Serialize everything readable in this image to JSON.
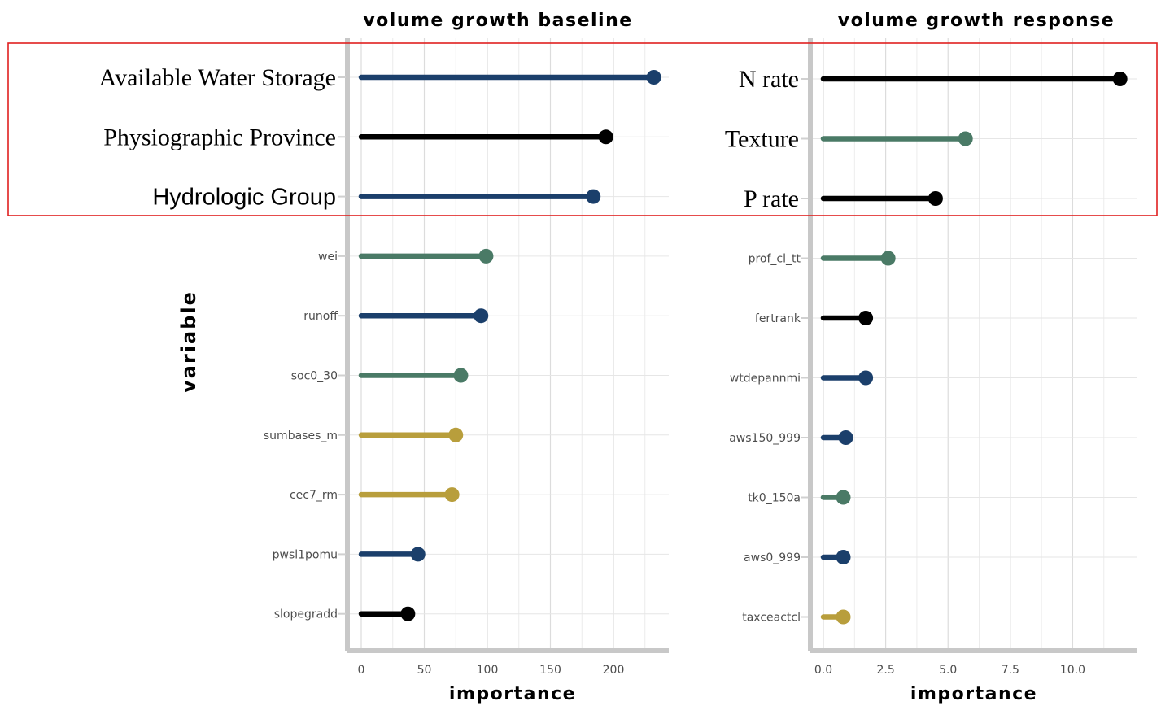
{
  "chart_data": [
    {
      "type": "lollipop",
      "title": "volume growth baseline",
      "xlabel": "importance",
      "ylabel": "variable",
      "xlim": [
        0,
        240
      ],
      "xticks": [
        0,
        50,
        100,
        150,
        200
      ],
      "grid": true,
      "highlight_box": "top 3 variables",
      "items": [
        {
          "label": "Available Water Storage",
          "value": 232,
          "color": "#1b3f6b"
        },
        {
          "label": "Physiographic Province",
          "value": 194,
          "color": "#000000"
        },
        {
          "label": "Hydrologic Group",
          "value": 184,
          "color": "#1b3f6b"
        },
        {
          "label": "wei",
          "value": 99,
          "color": "#4a7a66"
        },
        {
          "label": "runoff",
          "value": 95,
          "color": "#1b3f6b"
        },
        {
          "label": "soc0_30",
          "value": 79,
          "color": "#4a7a66"
        },
        {
          "label": "sumbases_m",
          "value": 75,
          "color": "#b89e3c"
        },
        {
          "label": "cec7_rm",
          "value": 72,
          "color": "#b89e3c"
        },
        {
          "label": "pwsl1pomu",
          "value": 45,
          "color": "#1b3f6b"
        },
        {
          "label": "slopegradd",
          "value": 37,
          "color": "#000000"
        }
      ]
    },
    {
      "type": "lollipop",
      "title": "volume growth response",
      "xlabel": "importance",
      "ylabel": "",
      "xlim": [
        0,
        12.4
      ],
      "xticks": [
        0.0,
        2.5,
        5.0,
        7.5,
        10.0
      ],
      "xticklabels": [
        "0.0",
        "2.5",
        "5.0",
        "7.5",
        "10.0"
      ],
      "grid": true,
      "highlight_box": "top 3 variables",
      "items": [
        {
          "label": "N rate",
          "value": 11.9,
          "color": "#000000"
        },
        {
          "label": "Texture",
          "value": 5.7,
          "color": "#4a7a66"
        },
        {
          "label": "P rate",
          "value": 4.5,
          "color": "#000000"
        },
        {
          "label": "prof_cl_tt",
          "value": 2.6,
          "color": "#4a7a66"
        },
        {
          "label": "fertrank",
          "value": 1.7,
          "color": "#000000"
        },
        {
          "label": "wtdepannmi",
          "value": 1.7,
          "color": "#1b3f6b"
        },
        {
          "label": "aws150_999",
          "value": 0.9,
          "color": "#1b3f6b"
        },
        {
          "label": "tk0_150a",
          "value": 0.8,
          "color": "#4a7a66"
        },
        {
          "label": "aws0_999",
          "value": 0.8,
          "color": "#1b3f6b"
        },
        {
          "label": "taxceactcl",
          "value": 0.8,
          "color": "#b89e3c"
        }
      ]
    }
  ]
}
